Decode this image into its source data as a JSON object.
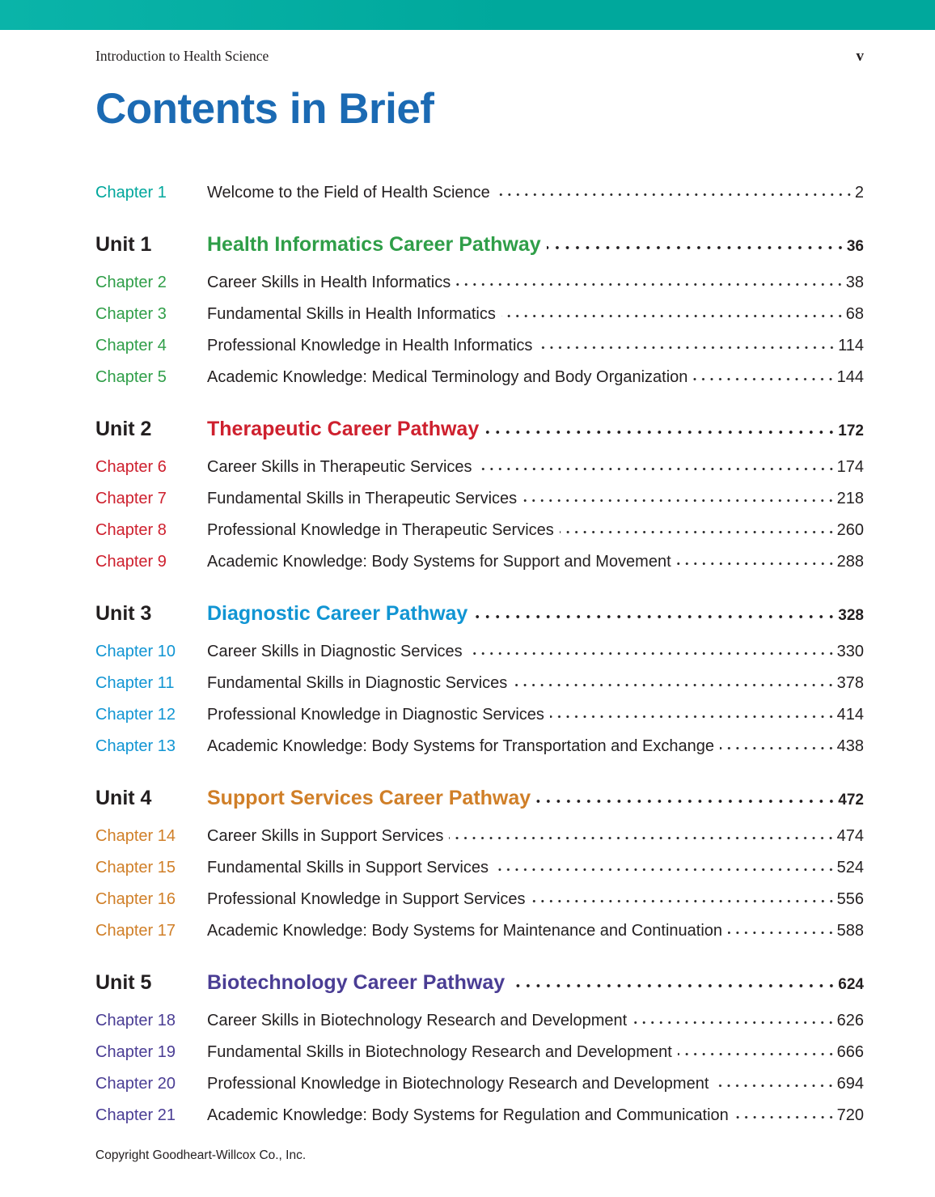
{
  "header": {
    "book_title": "Introduction to Health Science",
    "page_number": "v"
  },
  "title": "Contents in Brief",
  "footer": "Copyright Goodheart-Willcox Co., Inc.",
  "colors": {
    "teal": "#00a79c",
    "green": "#2f9e48",
    "red": "#ce202e",
    "blue": "#1195d3",
    "orange": "#d07f28",
    "purple": "#4a3d94",
    "title_blue": "#1b6ab3",
    "topbar_left": "#0ab4a9",
    "topbar_right": "#00a89c",
    "text": "#231f20"
  },
  "toc": [
    {
      "type": "chapter",
      "label": "Chapter 1",
      "title": "Welcome to the Field of Health Science",
      "page": "2",
      "color": "teal"
    },
    {
      "type": "unit",
      "label": "Unit 1",
      "title": "Health Informatics Career Pathway",
      "page": "36",
      "color": "green"
    },
    {
      "type": "chapter",
      "label": "Chapter 2",
      "title": "Career Skills in Health Informatics",
      "page": "38",
      "color": "green"
    },
    {
      "type": "chapter",
      "label": "Chapter 3",
      "title": "Fundamental Skills in Health Informatics",
      "page": "68",
      "color": "green"
    },
    {
      "type": "chapter",
      "label": "Chapter 4",
      "title": "Professional Knowledge in Health Informatics",
      "page": "114",
      "color": "green"
    },
    {
      "type": "chapter",
      "label": "Chapter 5",
      "title": "Academic Knowledge: Medical Terminology and Body Organization",
      "page": "144",
      "color": "green"
    },
    {
      "type": "unit",
      "label": "Unit 2",
      "title": "Therapeutic Career Pathway",
      "page": "172",
      "color": "red"
    },
    {
      "type": "chapter",
      "label": "Chapter 6",
      "title": "Career Skills in Therapeutic Services",
      "page": "174",
      "color": "red"
    },
    {
      "type": "chapter",
      "label": "Chapter 7",
      "title": "Fundamental Skills in Therapeutic Services",
      "page": "218",
      "color": "red"
    },
    {
      "type": "chapter",
      "label": "Chapter 8",
      "title": "Professional Knowledge in Therapeutic Services",
      "page": "260",
      "color": "red"
    },
    {
      "type": "chapter",
      "label": "Chapter 9",
      "title": "Academic Knowledge: Body Systems for Support and Movement",
      "page": "288",
      "color": "red"
    },
    {
      "type": "unit",
      "label": "Unit 3",
      "title": "Diagnostic Career Pathway",
      "page": "328",
      "color": "blue"
    },
    {
      "type": "chapter",
      "label": "Chapter 10",
      "title": "Career Skills in Diagnostic Services",
      "page": "330",
      "color": "blue"
    },
    {
      "type": "chapter",
      "label": "Chapter 11",
      "title": "Fundamental Skills in Diagnostic Services",
      "page": "378",
      "color": "blue"
    },
    {
      "type": "chapter",
      "label": "Chapter 12",
      "title": "Professional Knowledge in Diagnostic Services",
      "page": "414",
      "color": "blue"
    },
    {
      "type": "chapter",
      "label": "Chapter 13",
      "title": "Academic Knowledge: Body Systems for Transportation and Exchange",
      "page": "438",
      "color": "blue"
    },
    {
      "type": "unit",
      "label": "Unit 4",
      "title": "Support Services Career Pathway",
      "page": "472",
      "color": "orange"
    },
    {
      "type": "chapter",
      "label": "Chapter 14",
      "title": "Career Skills in Support Services",
      "page": "474",
      "color": "orange"
    },
    {
      "type": "chapter",
      "label": "Chapter 15",
      "title": "Fundamental Skills in Support Services",
      "page": "524",
      "color": "orange"
    },
    {
      "type": "chapter",
      "label": "Chapter 16",
      "title": "Professional Knowledge in Support Services",
      "page": "556",
      "color": "orange"
    },
    {
      "type": "chapter",
      "label": "Chapter 17",
      "title": "Academic Knowledge: Body Systems for Maintenance and Continuation",
      "page": "588",
      "color": "orange"
    },
    {
      "type": "unit",
      "label": "Unit 5",
      "title": "Biotechnology Career Pathway",
      "page": "624",
      "color": "purple"
    },
    {
      "type": "chapter",
      "label": "Chapter 18",
      "title": "Career Skills in Biotechnology Research and Development",
      "page": "626",
      "color": "purple"
    },
    {
      "type": "chapter",
      "label": "Chapter 19",
      "title": "Fundamental Skills in Biotechnology Research and Development",
      "page": "666",
      "color": "purple"
    },
    {
      "type": "chapter",
      "label": "Chapter 20",
      "title": "Professional Knowledge in Biotechnology Research and Development",
      "page": "694",
      "color": "purple"
    },
    {
      "type": "chapter",
      "label": "Chapter 21",
      "title": "Academic Knowledge: Body Systems for Regulation and Communication",
      "page": "720",
      "color": "purple"
    }
  ]
}
